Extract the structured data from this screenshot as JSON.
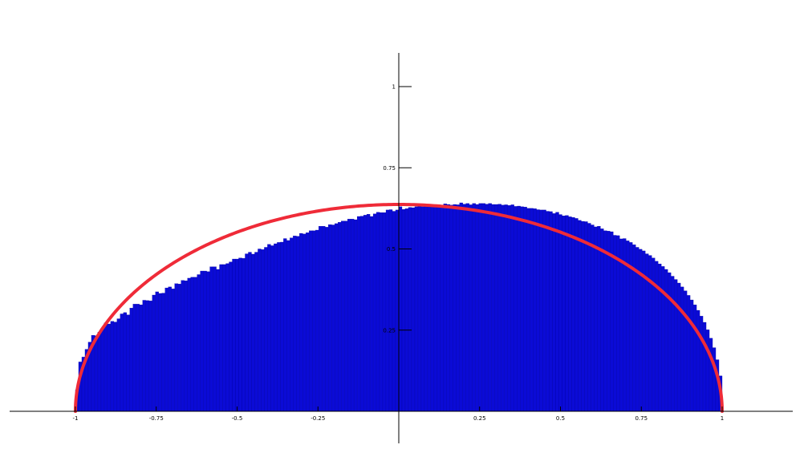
{
  "colors": {
    "bar_fill": "#0b0bd6",
    "bar_stroke": "#0000a0",
    "curve": "#ef2b38",
    "axis": "#000000",
    "background": "#ffffff"
  },
  "chart_data": {
    "type": "bar",
    "title": "",
    "xlabel": "",
    "ylabel": "",
    "xlim": [
      -1.2,
      1.22
    ],
    "ylim": [
      -0.1,
      1.1
    ],
    "grid": false,
    "legend": "none",
    "x_ticks": [
      {
        "value": -1,
        "label": "-1"
      },
      {
        "value": -0.75,
        "label": "-0.75"
      },
      {
        "value": -0.5,
        "label": "-0.5"
      },
      {
        "value": -0.25,
        "label": "-0.25"
      },
      {
        "value": 0.25,
        "label": "0.25"
      },
      {
        "value": 0.5,
        "label": "0.5"
      },
      {
        "value": 0.75,
        "label": "0.75"
      },
      {
        "value": 1,
        "label": "1"
      }
    ],
    "y_ticks": [
      {
        "value": 0.25,
        "label": "0.25"
      },
      {
        "value": 0.5,
        "label": "0.5"
      },
      {
        "value": 0.75,
        "label": "0.75"
      },
      {
        "value": 1,
        "label": "1"
      }
    ],
    "histogram": {
      "range": [
        -1,
        1
      ],
      "bin_count": 200,
      "values": [
        0.066,
        0.152,
        0.167,
        0.191,
        0.213,
        0.234,
        0.233,
        0.244,
        0.256,
        0.272,
        0.269,
        0.277,
        0.275,
        0.285,
        0.3,
        0.304,
        0.297,
        0.318,
        0.33,
        0.33,
        0.328,
        0.342,
        0.341,
        0.34,
        0.358,
        0.368,
        0.363,
        0.364,
        0.38,
        0.383,
        0.377,
        0.393,
        0.392,
        0.403,
        0.402,
        0.41,
        0.413,
        0.413,
        0.421,
        0.432,
        0.432,
        0.43,
        0.445,
        0.445,
        0.437,
        0.452,
        0.452,
        0.455,
        0.46,
        0.469,
        0.469,
        0.472,
        0.471,
        0.485,
        0.49,
        0.484,
        0.49,
        0.5,
        0.498,
        0.505,
        0.514,
        0.51,
        0.516,
        0.52,
        0.521,
        0.532,
        0.526,
        0.534,
        0.54,
        0.539,
        0.548,
        0.546,
        0.55,
        0.556,
        0.556,
        0.558,
        0.57,
        0.57,
        0.567,
        0.575,
        0.574,
        0.578,
        0.582,
        0.586,
        0.586,
        0.592,
        0.592,
        0.59,
        0.6,
        0.601,
        0.604,
        0.607,
        0.6,
        0.608,
        0.613,
        0.612,
        0.612,
        0.62,
        0.621,
        0.616,
        0.62,
        0.63,
        0.622,
        0.624,
        0.628,
        0.627,
        0.63,
        0.632,
        0.63,
        0.633,
        0.632,
        0.634,
        0.636,
        0.636,
        0.633,
        0.639,
        0.637,
        0.635,
        0.637,
        0.636,
        0.642,
        0.638,
        0.64,
        0.636,
        0.64,
        0.637,
        0.64,
        0.64,
        0.638,
        0.64,
        0.637,
        0.637,
        0.638,
        0.635,
        0.636,
        0.634,
        0.636,
        0.631,
        0.632,
        0.63,
        0.629,
        0.625,
        0.625,
        0.624,
        0.621,
        0.62,
        0.62,
        0.616,
        0.615,
        0.609,
        0.613,
        0.606,
        0.602,
        0.603,
        0.599,
        0.597,
        0.594,
        0.588,
        0.585,
        0.584,
        0.579,
        0.574,
        0.568,
        0.57,
        0.562,
        0.556,
        0.555,
        0.553,
        0.542,
        0.541,
        0.531,
        0.532,
        0.525,
        0.52,
        0.513,
        0.505,
        0.499,
        0.494,
        0.485,
        0.48,
        0.472,
        0.462,
        0.454,
        0.446,
        0.437,
        0.427,
        0.416,
        0.406,
        0.395,
        0.383,
        0.371,
        0.357,
        0.343,
        0.328,
        0.311,
        0.293,
        0.274,
        0.251,
        0.225,
        0.196,
        0.159,
        0.109
      ]
    },
    "curve": {
      "type": "line",
      "description_formula": "y = 0.637 * sqrt(1 - x^2)",
      "x_range": [
        -1,
        1
      ],
      "amplitude": 0.637
    }
  }
}
